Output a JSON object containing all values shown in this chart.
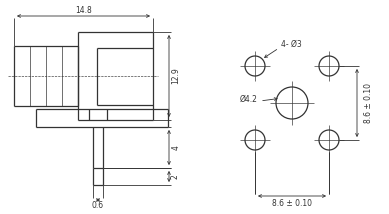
{
  "bg_color": "#ffffff",
  "line_color": "#333333",
  "dim_color": "#333333",
  "linewidth": 0.9,
  "dim_linewidth": 0.6,
  "left_view": {
    "dim_14_8": "14.8",
    "dim_12_9": "12.9",
    "dim_4": "4",
    "dim_2": "2",
    "dim_0_6": "0.6"
  },
  "right_view": {
    "label_4holes": "4- Ø3",
    "label_center": "Ø4.2",
    "dim_horiz": "8.6 ± 0.10",
    "dim_vert": "8.6 ± 0.10"
  }
}
